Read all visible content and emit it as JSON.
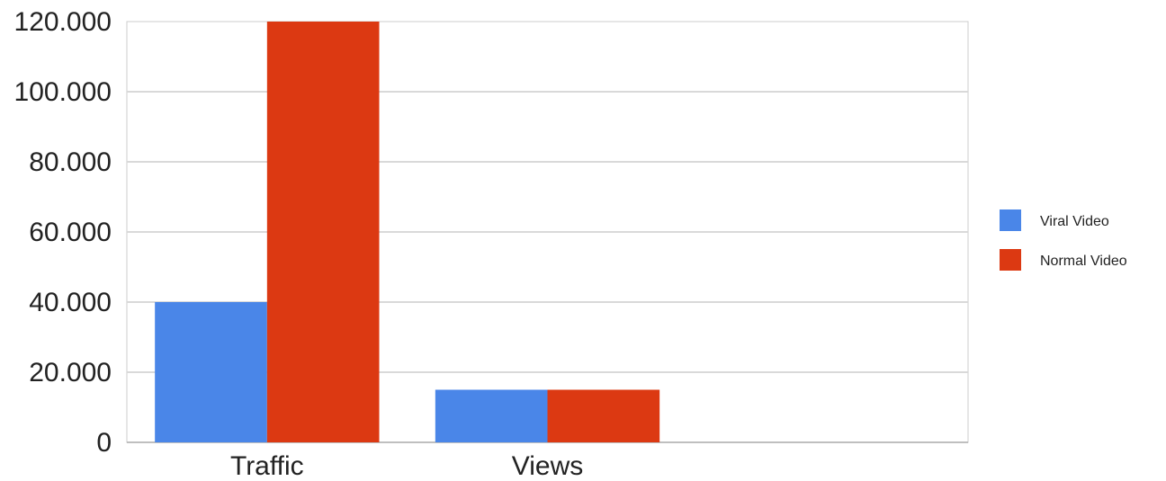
{
  "chart_data": {
    "type": "bar",
    "categories": [
      "Traffic",
      "Views",
      ""
    ],
    "series": [
      {
        "name": "Viral Video",
        "color": "#4a86e8",
        "values": [
          40000,
          15000,
          null
        ]
      },
      {
        "name": "Normal Video",
        "color": "#dc3912",
        "values": [
          120000,
          15000,
          null
        ]
      }
    ],
    "ylim": [
      0,
      120000
    ],
    "yticks": [
      0,
      20000,
      40000,
      60000,
      80000,
      100000,
      120000
    ],
    "ytick_labels": [
      "0",
      "20.000",
      "40.000",
      "60.000",
      "80.000",
      "100.000",
      "120.000"
    ],
    "title": "",
    "xlabel": "",
    "ylabel": "",
    "grid": true,
    "legend_position": "right"
  }
}
